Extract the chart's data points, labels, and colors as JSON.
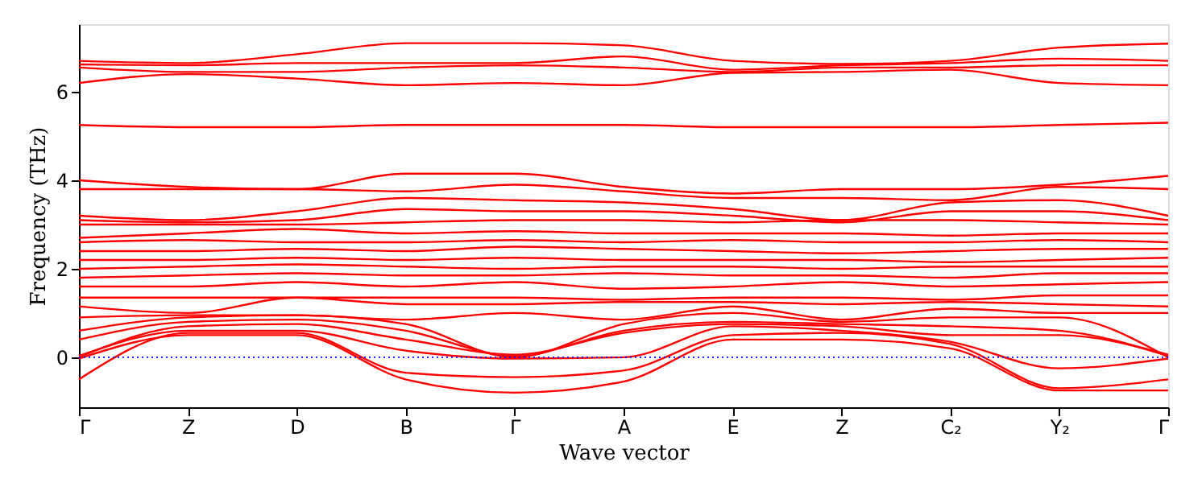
{
  "chart_data": {
    "type": "line",
    "xlabel": "Wave vector",
    "ylabel": "Frequency (THz)",
    "categories": [
      "Γ",
      "Z",
      "D",
      "B",
      "Γ",
      "A",
      "E",
      "Z",
      "C₂",
      "Y₂",
      "Γ"
    ],
    "ylim": [
      -1.13,
      7.53
    ],
    "yticks": [
      0,
      2,
      4,
      6
    ],
    "grid": false,
    "marker": "none",
    "line_style": "solid",
    "ref_lines": [
      {
        "axis": "y",
        "value": 0,
        "color": "#0000ff",
        "line_style": "dotted"
      }
    ],
    "series": [
      {
        "color": "#ff0000",
        "values": [
          6.7,
          6.65,
          6.85,
          7.1,
          7.1,
          7.05,
          6.7,
          6.63,
          6.7,
          7.0,
          7.09
        ]
      },
      {
        "color": "#ff0000",
        "values": [
          6.62,
          6.6,
          6.65,
          6.65,
          6.65,
          6.8,
          6.5,
          6.6,
          6.65,
          6.75,
          6.7
        ]
      },
      {
        "color": "#ff0000",
        "values": [
          6.55,
          6.45,
          6.45,
          6.55,
          6.6,
          6.55,
          6.45,
          6.55,
          6.55,
          6.6,
          6.6
        ]
      },
      {
        "color": "#ff0000",
        "values": [
          6.2,
          6.4,
          6.3,
          6.15,
          6.2,
          6.15,
          6.43,
          6.45,
          6.5,
          6.2,
          6.15
        ]
      },
      {
        "color": "#ff0000",
        "values": [
          5.25,
          5.2,
          5.2,
          5.25,
          5.25,
          5.25,
          5.2,
          5.2,
          5.2,
          5.25,
          5.3
        ]
      },
      {
        "color": "#ff0000",
        "values": [
          4.0,
          3.85,
          3.8,
          4.15,
          4.15,
          3.85,
          3.7,
          3.8,
          3.8,
          3.9,
          4.1
        ]
      },
      {
        "color": "#ff0000",
        "values": [
          3.8,
          3.8,
          3.8,
          3.75,
          3.9,
          3.75,
          3.6,
          3.6,
          3.55,
          3.85,
          3.8
        ]
      },
      {
        "color": "#ff0000",
        "values": [
          3.2,
          3.1,
          3.3,
          3.6,
          3.55,
          3.5,
          3.35,
          3.1,
          3.5,
          3.55,
          3.2
        ]
      },
      {
        "color": "#ff0000",
        "values": [
          3.1,
          3.05,
          3.1,
          3.35,
          3.3,
          3.3,
          3.2,
          3.05,
          3.3,
          3.3,
          3.1
        ]
      },
      {
        "color": "#ff0000",
        "values": [
          3.0,
          3.0,
          3.0,
          3.05,
          3.1,
          3.1,
          3.05,
          3.1,
          3.1,
          3.05,
          3.0
        ]
      },
      {
        "color": "#ff0000",
        "values": [
          2.7,
          2.8,
          2.9,
          2.8,
          2.85,
          2.8,
          2.8,
          2.8,
          2.75,
          2.8,
          2.8
        ]
      },
      {
        "color": "#ff0000",
        "values": [
          2.6,
          2.65,
          2.6,
          2.6,
          2.65,
          2.6,
          2.65,
          2.6,
          2.6,
          2.65,
          2.6
        ]
      },
      {
        "color": "#ff0000",
        "values": [
          2.4,
          2.4,
          2.45,
          2.4,
          2.5,
          2.45,
          2.4,
          2.35,
          2.4,
          2.45,
          2.45
        ]
      },
      {
        "color": "#ff0000",
        "values": [
          2.2,
          2.2,
          2.25,
          2.2,
          2.25,
          2.2,
          2.2,
          2.2,
          2.15,
          2.2,
          2.25
        ]
      },
      {
        "color": "#ff0000",
        "values": [
          2.0,
          2.05,
          2.1,
          2.05,
          2.0,
          2.05,
          2.05,
          2.0,
          2.05,
          2.05,
          2.05
        ]
      },
      {
        "color": "#ff0000",
        "values": [
          1.8,
          1.85,
          1.9,
          1.85,
          1.85,
          1.9,
          1.85,
          1.85,
          1.8,
          1.9,
          1.9
        ]
      },
      {
        "color": "#ff0000",
        "values": [
          1.6,
          1.6,
          1.7,
          1.6,
          1.7,
          1.55,
          1.6,
          1.7,
          1.6,
          1.65,
          1.7
        ]
      },
      {
        "color": "#ff0000",
        "values": [
          1.35,
          1.35,
          1.35,
          1.35,
          1.35,
          1.3,
          1.35,
          1.35,
          1.3,
          1.4,
          1.4
        ]
      },
      {
        "color": "#ff0000",
        "values": [
          1.15,
          1.0,
          1.35,
          1.2,
          1.2,
          1.25,
          1.25,
          1.2,
          1.25,
          1.2,
          1.15
        ]
      },
      {
        "color": "#ff0000",
        "values": [
          0.9,
          0.95,
          0.95,
          0.85,
          1.0,
          0.85,
          1.15,
          0.85,
          1.1,
          1.0,
          1.0
        ]
      },
      {
        "color": "#ff0000",
        "values": [
          0.6,
          0.9,
          0.95,
          0.75,
          0.0,
          0.75,
          1.0,
          0.8,
          0.9,
          0.9,
          0.0
        ]
      },
      {
        "color": "#ff0000",
        "values": [
          0.4,
          0.8,
          0.85,
          0.6,
          0.03,
          0.6,
          0.8,
          0.75,
          0.7,
          0.6,
          0.03
        ]
      },
      {
        "color": "#ff0000",
        "values": [
          0.0,
          0.7,
          0.75,
          0.4,
          0.06,
          0.55,
          0.75,
          0.7,
          0.5,
          0.5,
          0.06
        ]
      },
      {
        "color": "#ff0000",
        "values": [
          0.03,
          0.6,
          0.6,
          0.15,
          -0.03,
          0.0,
          0.7,
          0.6,
          0.35,
          -0.25,
          -0.03
        ]
      },
      {
        "color": "#ff0000",
        "values": [
          -0.5,
          0.55,
          0.55,
          -0.35,
          -0.45,
          -0.3,
          0.5,
          0.55,
          0.3,
          -0.7,
          -0.5
        ]
      },
      {
        "color": "#ff0000",
        "values": [
          -0.03,
          0.5,
          0.5,
          -0.5,
          -0.8,
          -0.55,
          0.4,
          0.4,
          0.2,
          -0.75,
          -0.75
        ]
      }
    ]
  }
}
